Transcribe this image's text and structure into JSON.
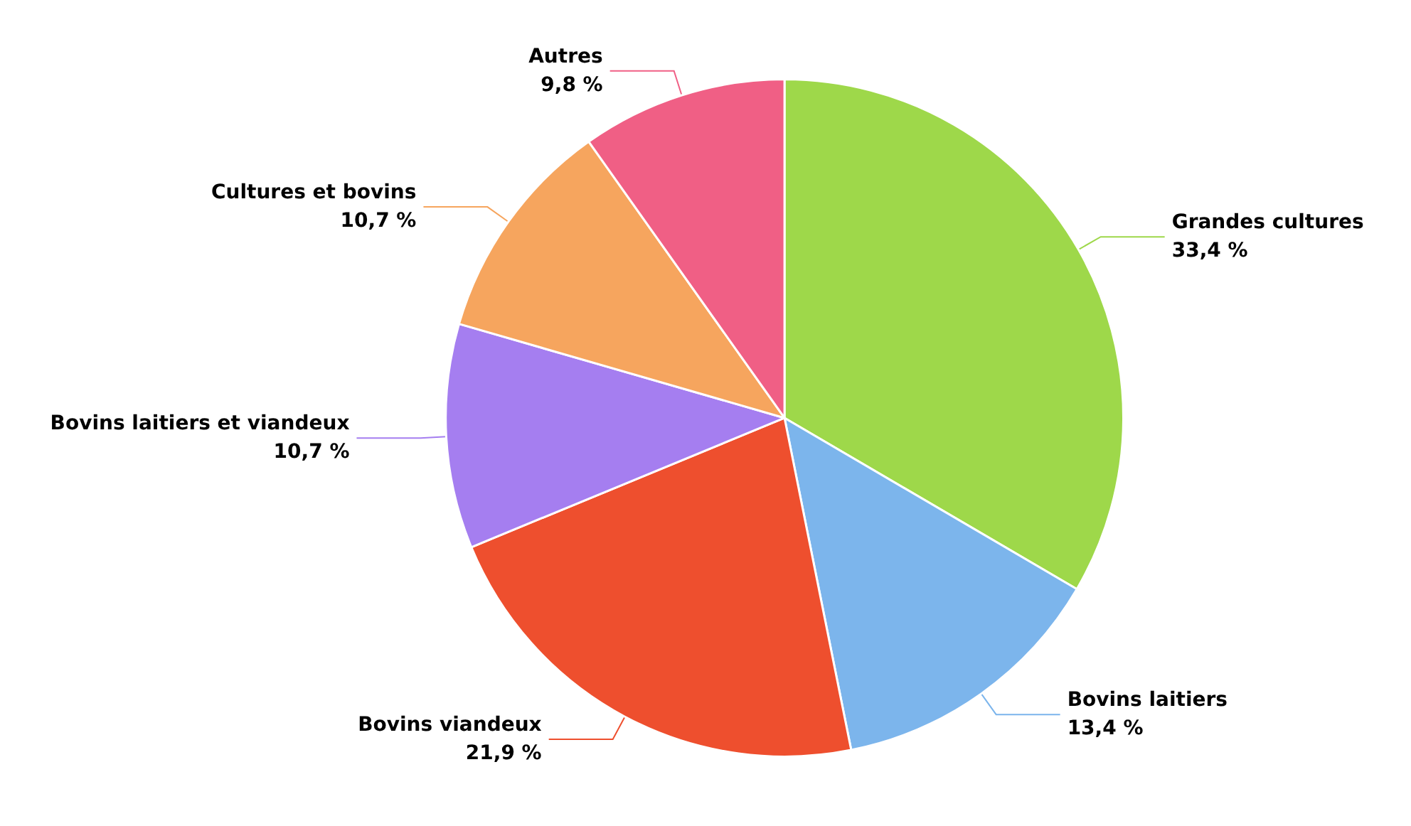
{
  "chart_data": {
    "type": "pie",
    "categories": [
      "Grandes cultures",
      "Bovins laitiers",
      "Bovins viandeux",
      "Bovins laitiers et viandeux",
      "Cultures et bovins",
      "Autres"
    ],
    "values": [
      33.4,
      13.4,
      21.9,
      10.7,
      10.7,
      9.8
    ],
    "value_labels": [
      "33,4 %",
      "13,4 %",
      "21,9 %",
      "10,7 %",
      "10,7 %",
      "9,8 %"
    ],
    "colors": [
      "#9ed84a",
      "#7cb5ec",
      "#ee4f2e",
      "#a57ef0",
      "#f6a55e",
      "#f05f85"
    ],
    "legend": false
  }
}
